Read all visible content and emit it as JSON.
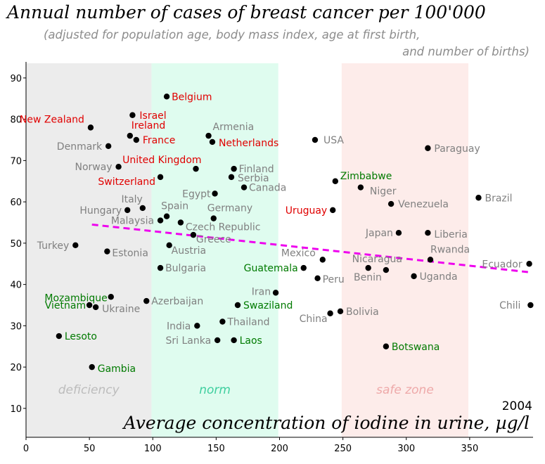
{
  "title": "Annual number of cases of breast cancer per 100'000",
  "subtitle_line1": "(adjusted for population age, body mass index, age at first birth,",
  "subtitle_line2": "and number of births)",
  "year": "2004",
  "colors": {
    "red": "#e00000",
    "green": "#007a00",
    "gray": "#808080",
    "trend": "#ee00ee",
    "deficiency": "#ececec",
    "norm": "#dffcef",
    "safe": "#fdecea"
  },
  "chart_data": {
    "type": "scatter",
    "title": "Annual number of cases of breast cancer per 100'000",
    "subtitle": "(adjusted for population age, body mass index, age at first birth, and number of births)",
    "xlabel": "Average concentration of iodine in urine, µg/l",
    "ylabel": "",
    "xlim": [
      0,
      400
    ],
    "ylim": [
      3,
      90
    ],
    "xticks": [
      0,
      50,
      100,
      150,
      200,
      250,
      300,
      350
    ],
    "yticks": [
      10,
      20,
      30,
      40,
      50,
      60,
      70,
      80,
      90
    ],
    "zones": [
      {
        "label": "deficiency",
        "x0": 0,
        "x1": 99,
        "color": "#ececec",
        "label_color": "#bcbcbc"
      },
      {
        "label": "norm",
        "x0": 99,
        "x1": 199,
        "color": "#dffcef",
        "label_color": "#3fcf9f"
      },
      {
        "label": "safe zone",
        "x0": 249,
        "x1": 349,
        "color": "#fdecea",
        "label_color": "#eea9a9"
      }
    ],
    "trend": {
      "x": [
        52,
        396
      ],
      "y": [
        54.5,
        43
      ]
    },
    "points": [
      {
        "label": "Belgium",
        "x": 111,
        "y": 85.5,
        "color": "red",
        "lx": 7,
        "ly": 5,
        "anchor": "start"
      },
      {
        "label": "Israel",
        "x": 84,
        "y": 81,
        "color": "red",
        "lx": 10,
        "ly": 5,
        "anchor": "start"
      },
      {
        "label": "New Zealand",
        "x": 51,
        "y": 78,
        "color": "red",
        "lx": -9,
        "ly": -7,
        "anchor": "end"
      },
      {
        "label": "Ireland",
        "x": 82,
        "y": 76,
        "color": "red",
        "lx": 2,
        "ly": -10,
        "anchor": "start"
      },
      {
        "label": "France",
        "x": 87,
        "y": 75,
        "color": "red",
        "lx": 9,
        "ly": 5,
        "anchor": "start"
      },
      {
        "label": "Denmark",
        "x": 65,
        "y": 73.5,
        "color": "gray",
        "lx": -9,
        "ly": 5,
        "anchor": "end"
      },
      {
        "label": "Armenia",
        "x": 144,
        "y": 76,
        "color": "gray",
        "lx": 6,
        "ly": -8,
        "anchor": "start"
      },
      {
        "label": "Netherlands",
        "x": 147,
        "y": 74.5,
        "color": "red",
        "lx": 9,
        "ly": 6,
        "anchor": "start"
      },
      {
        "label": "USA",
        "x": 228,
        "y": 75,
        "color": "gray",
        "lx": 12,
        "ly": 5,
        "anchor": "start"
      },
      {
        "label": "Paraguay",
        "x": 317,
        "y": 73,
        "color": "gray",
        "lx": 9,
        "ly": 5,
        "anchor": "start"
      },
      {
        "label": "United Kingdom",
        "x": 134,
        "y": 68,
        "color": "red",
        "lx": 8,
        "ly": -8,
        "anchor": "end"
      },
      {
        "label": "Norway",
        "x": 73,
        "y": 68.5,
        "color": "gray",
        "lx": -9,
        "ly": 5,
        "anchor": "end"
      },
      {
        "label": "Finland",
        "x": 164,
        "y": 68,
        "color": "gray",
        "lx": 7,
        "ly": 5,
        "anchor": "start"
      },
      {
        "label": "Switzerland",
        "x": 106,
        "y": 66,
        "color": "red",
        "lx": -7,
        "ly": 11,
        "anchor": "end"
      },
      {
        "label": "Serbia",
        "x": 162,
        "y": 66,
        "color": "gray",
        "lx": 9,
        "ly": 6,
        "anchor": "start"
      },
      {
        "label": "Zimbabwe",
        "x": 244,
        "y": 65,
        "color": "green",
        "lx": 7,
        "ly": -3,
        "anchor": "start"
      },
      {
        "label": "Canada",
        "x": 172,
        "y": 63.5,
        "color": "gray",
        "lx": 7,
        "ly": 5,
        "anchor": "start"
      },
      {
        "label": "Niger",
        "x": 264,
        "y": 63.5,
        "color": "gray",
        "lx": 13,
        "ly": 10,
        "anchor": "start"
      },
      {
        "label": "Egypt",
        "x": 149,
        "y": 62,
        "color": "gray",
        "lx": -6,
        "ly": 5,
        "anchor": "end"
      },
      {
        "label": "Brazil",
        "x": 357,
        "y": 61,
        "color": "gray",
        "lx": 9,
        "ly": 5,
        "anchor": "start"
      },
      {
        "label": "Italy",
        "x": 92,
        "y": 58.5,
        "color": "gray",
        "lx": 0,
        "ly": -8,
        "anchor": "end"
      },
      {
        "label": "Venezuela",
        "x": 288,
        "y": 59.5,
        "color": "gray",
        "lx": 10,
        "ly": 5,
        "anchor": "start"
      },
      {
        "label": "Hungary",
        "x": 80,
        "y": 58,
        "color": "gray",
        "lx": -8,
        "ly": 5,
        "anchor": "end"
      },
      {
        "label": "Uruguay",
        "x": 242,
        "y": 58,
        "color": "red",
        "lx": -8,
        "ly": 5,
        "anchor": "end"
      },
      {
        "label": "Spain",
        "x": 111,
        "y": 56.5,
        "color": "gray",
        "lx": -8,
        "ly": -10,
        "anchor": "start"
      },
      {
        "label": "Germany",
        "x": 148,
        "y": 56,
        "color": "gray",
        "lx": -9,
        "ly": -10,
        "anchor": "start"
      },
      {
        "label": "Malaysia",
        "x": 106,
        "y": 55.5,
        "color": "gray",
        "lx": -9,
        "ly": 5,
        "anchor": "end"
      },
      {
        "label": "Czech Republic",
        "x": 122,
        "y": 55,
        "color": "gray",
        "lx": 7,
        "ly": 11,
        "anchor": "start"
      },
      {
        "label": "Japan",
        "x": 294,
        "y": 52.5,
        "color": "gray",
        "lx": -8,
        "ly": 5,
        "anchor": "end"
      },
      {
        "label": "Liberia",
        "x": 317,
        "y": 52.5,
        "color": "gray",
        "lx": 9,
        "ly": 7,
        "anchor": "start"
      },
      {
        "label": "Greece",
        "x": 132,
        "y": 52,
        "color": "gray",
        "lx": 4,
        "ly": 11,
        "anchor": "start"
      },
      {
        "label": "Turkey",
        "x": 39,
        "y": 49.5,
        "color": "gray",
        "lx": -9,
        "ly": 5,
        "anchor": "end"
      },
      {
        "label": "Austria",
        "x": 113,
        "y": 49.5,
        "color": "gray",
        "lx": 3,
        "ly": 12,
        "anchor": "start"
      },
      {
        "label": "Estonia",
        "x": 64,
        "y": 48,
        "color": "gray",
        "lx": 7,
        "ly": 7,
        "anchor": "start"
      },
      {
        "label": "Rwanda",
        "x": 319,
        "y": 46,
        "color": "gray",
        "lx": 0,
        "ly": -10,
        "anchor": "start"
      },
      {
        "label": "Mexico",
        "x": 234,
        "y": 46,
        "color": "gray",
        "lx": -10,
        "ly": -5,
        "anchor": "end"
      },
      {
        "label": "Nicaragua",
        "x": 270,
        "y": 44,
        "color": "gray",
        "lx": -23,
        "ly": -8,
        "anchor": "start"
      },
      {
        "label": "Guatemala",
        "x": 219,
        "y": 44,
        "color": "green",
        "lx": -8,
        "ly": 5,
        "anchor": "end"
      },
      {
        "label": "Ecuador",
        "x": 397,
        "y": 45,
        "color": "gray",
        "lx": -10,
        "ly": 5,
        "anchor": "end"
      },
      {
        "label": "Bulgaria",
        "x": 106,
        "y": 44,
        "color": "gray",
        "lx": 7,
        "ly": 5,
        "anchor": "start"
      },
      {
        "label": "Benin",
        "x": 284,
        "y": 43.5,
        "color": "gray",
        "lx": -6,
        "ly": 15,
        "anchor": "end"
      },
      {
        "label": "Uganda",
        "x": 306,
        "y": 42,
        "color": "gray",
        "lx": 8,
        "ly": 5,
        "anchor": "start"
      },
      {
        "label": "Peru",
        "x": 230,
        "y": 41.5,
        "color": "gray",
        "lx": 7,
        "ly": 6,
        "anchor": "start"
      },
      {
        "label": "Iran",
        "x": 197,
        "y": 38,
        "color": "gray",
        "lx": -7,
        "ly": 3,
        "anchor": "end"
      },
      {
        "label": "Mozambique",
        "x": 67,
        "y": 37,
        "color": "green",
        "lx": -5,
        "ly": 6,
        "anchor": "end"
      },
      {
        "label": "Azerbaijan",
        "x": 95,
        "y": 36,
        "color": "gray",
        "lx": 7,
        "ly": 5,
        "anchor": "start"
      },
      {
        "label": "Swaziland",
        "x": 167,
        "y": 35,
        "color": "green",
        "lx": 8,
        "ly": 5,
        "anchor": "start"
      },
      {
        "label": "Vietnam",
        "x": 50,
        "y": 35,
        "color": "green",
        "lx": -5,
        "ly": 5,
        "anchor": "end"
      },
      {
        "label": "Ukraine",
        "x": 55,
        "y": 34.5,
        "color": "gray",
        "lx": 9,
        "ly": 7,
        "anchor": "start"
      },
      {
        "label": "Chili",
        "x": 398,
        "y": 35,
        "color": "gray",
        "lx": -14,
        "ly": 5,
        "anchor": "end"
      },
      {
        "label": "Bolivia",
        "x": 248,
        "y": 33.5,
        "color": "gray",
        "lx": 8,
        "ly": 5,
        "anchor": "start"
      },
      {
        "label": "China",
        "x": 240,
        "y": 33,
        "color": "gray",
        "lx": -4,
        "ly": 12,
        "anchor": "end"
      },
      {
        "label": "Thailand",
        "x": 155,
        "y": 31,
        "color": "gray",
        "lx": 7,
        "ly": 5,
        "anchor": "start"
      },
      {
        "label": "India",
        "x": 135,
        "y": 30,
        "color": "gray",
        "lx": -9,
        "ly": 5,
        "anchor": "end"
      },
      {
        "label": "Lesoto",
        "x": 26,
        "y": 27.5,
        "color": "green",
        "lx": 8,
        "ly": 5,
        "anchor": "start"
      },
      {
        "label": "Sri Lanka",
        "x": 151,
        "y": 26.5,
        "color": "gray",
        "lx": -9,
        "ly": 5,
        "anchor": "end"
      },
      {
        "label": "Laos",
        "x": 164,
        "y": 26.5,
        "color": "green",
        "lx": 8,
        "ly": 5,
        "anchor": "start"
      },
      {
        "label": "Botswana",
        "x": 284,
        "y": 25,
        "color": "green",
        "lx": 8,
        "ly": 5,
        "anchor": "start"
      },
      {
        "label": "Gambia",
        "x": 52,
        "y": 20,
        "color": "green",
        "lx": 8,
        "ly": 7,
        "anchor": "start"
      }
    ]
  }
}
